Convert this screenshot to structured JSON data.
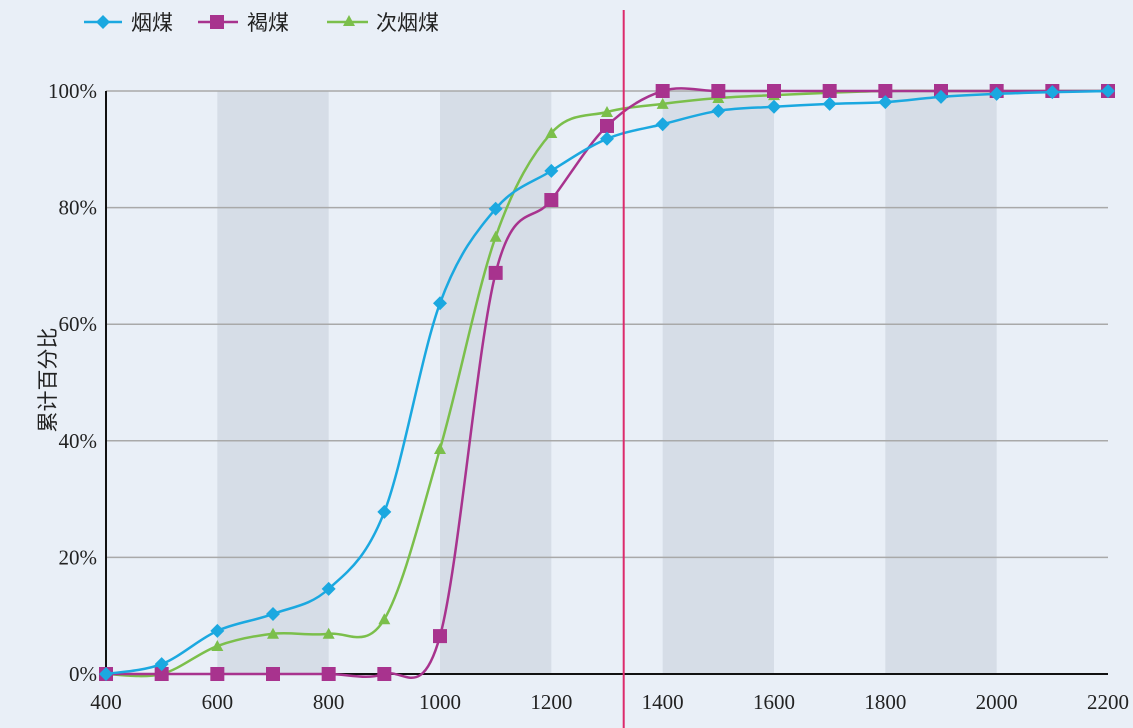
{
  "chart_data": {
    "type": "line",
    "title": "",
    "xlabel": "",
    "ylabel": "累计百分比",
    "smooth": true,
    "x": [
      400,
      500,
      600,
      700,
      800,
      900,
      1000,
      1100,
      1200,
      1300,
      1400,
      1500,
      1600,
      1700,
      1800,
      1900,
      2000,
      2100,
      2200
    ],
    "xlim": [
      400,
      2200
    ],
    "ylim": [
      0,
      100
    ],
    "x_ticks": [
      400,
      600,
      800,
      1000,
      1200,
      1400,
      1600,
      1800,
      2000,
      2200
    ],
    "x_tick_labels": [
      "400",
      "600",
      "800",
      "1000",
      "1200",
      "1400",
      "1600",
      "1800",
      "2000",
      "2200"
    ],
    "y_ticks": [
      0,
      20,
      40,
      60,
      80,
      100
    ],
    "y_tick_labels": [
      "0%",
      "20%",
      "40%",
      "60%",
      "80%",
      "100%"
    ],
    "grid": "horizontal",
    "legend_position": "top-left",
    "band_color": "#d6dde7",
    "shaded_bands": [
      [
        600,
        800
      ],
      [
        1000,
        1200
      ],
      [
        1400,
        1600
      ],
      [
        1800,
        2000
      ]
    ],
    "reference_lines": [
      {
        "x": 1330,
        "color": "#dc2a6b"
      }
    ],
    "series": [
      {
        "name": "烟煤",
        "color": "#1ba8e0",
        "marker": "diamond",
        "values": [
          0,
          1.7,
          7.4,
          10.3,
          14.6,
          27.8,
          63.6,
          79.8,
          86.3,
          91.8,
          94.3,
          96.6,
          97.3,
          97.8,
          98.1,
          99.0,
          99.5,
          99.8,
          100
        ]
      },
      {
        "name": "褐煤",
        "color": "#a8338e",
        "marker": "square",
        "values": [
          0,
          0,
          0,
          0,
          0,
          0,
          6.5,
          68.8,
          81.3,
          94.0,
          100,
          100,
          100,
          100,
          100,
          100,
          100,
          100,
          100
        ]
      },
      {
        "name": "次烟煤",
        "color": "#7bbf4b",
        "marker": "triangle",
        "values": [
          0,
          0,
          4.8,
          6.9,
          6.9,
          9.4,
          38.6,
          75.0,
          92.8,
          96.4,
          97.8,
          98.8,
          99.3,
          99.7,
          100,
          100,
          100,
          100,
          100
        ]
      }
    ]
  }
}
